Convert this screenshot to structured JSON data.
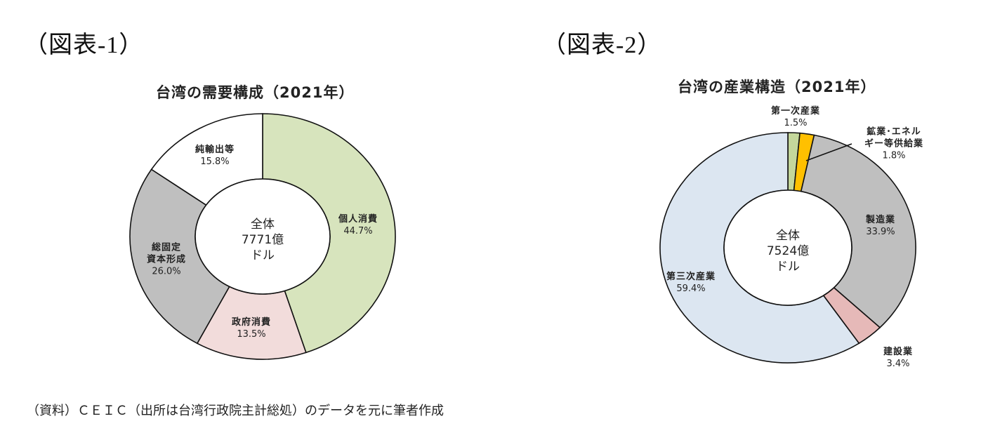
{
  "figures": [
    {
      "label": "（図表-1）"
    },
    {
      "label": "（図表-2）"
    }
  ],
  "source_note": "（資料）ＣＥＩＣ（出所は台湾行政院主計総処）のデータを元に筆者作成",
  "chart_data": [
    {
      "type": "pie",
      "variant": "donut",
      "title": "台湾の需要構成（2021年）",
      "center_label": [
        "全体",
        "7771億",
        "ドル"
      ],
      "unit": "%",
      "start_angle": "top, clockwise",
      "categories": [
        "個人消費",
        "政府消費",
        "総固定資本形成",
        "純輸出等"
      ],
      "values": [
        44.7,
        13.5,
        26.0,
        15.8
      ],
      "colors": [
        "#d7e4bd",
        "#f2dcdb",
        "#bfbfbf",
        "#ffffff"
      ],
      "labels": [
        {
          "name": "個人消費",
          "value": "44.7%"
        },
        {
          "name": "政府消費",
          "value": "13.5%"
        },
        {
          "name": "総固定資本形成",
          "name_lines": [
            "総固定",
            "資本形成"
          ],
          "value": "26.0%"
        },
        {
          "name": "純輸出等",
          "value": "15.8%"
        }
      ]
    },
    {
      "type": "pie",
      "variant": "donut",
      "title": "台湾の産業構造（2021年）",
      "center_label": [
        "全体",
        "7524億",
        "ドル"
      ],
      "unit": "%",
      "start_angle": "top, clockwise",
      "categories": [
        "第一次産業",
        "鉱業・エネルギー等供給業",
        "製造業",
        "建設業",
        "第三次産業"
      ],
      "values": [
        1.5,
        1.8,
        33.9,
        3.4,
        59.4
      ],
      "colors": [
        "#c4d79b",
        "#ffc000",
        "#bfbfbf",
        "#e6b9b8",
        "#dce6f1"
      ],
      "labels": [
        {
          "name": "第一次産業",
          "value": "1.5%"
        },
        {
          "name": "鉱業・エネルギー等供給業",
          "name_lines": [
            "鉱業･エネル",
            "ギー等供給業"
          ],
          "value": "1.8%"
        },
        {
          "name": "製造業",
          "value": "33.9%"
        },
        {
          "name": "建設業",
          "value": "3.4%"
        },
        {
          "name": "第三次産業",
          "value": "59.4%"
        }
      ]
    }
  ]
}
